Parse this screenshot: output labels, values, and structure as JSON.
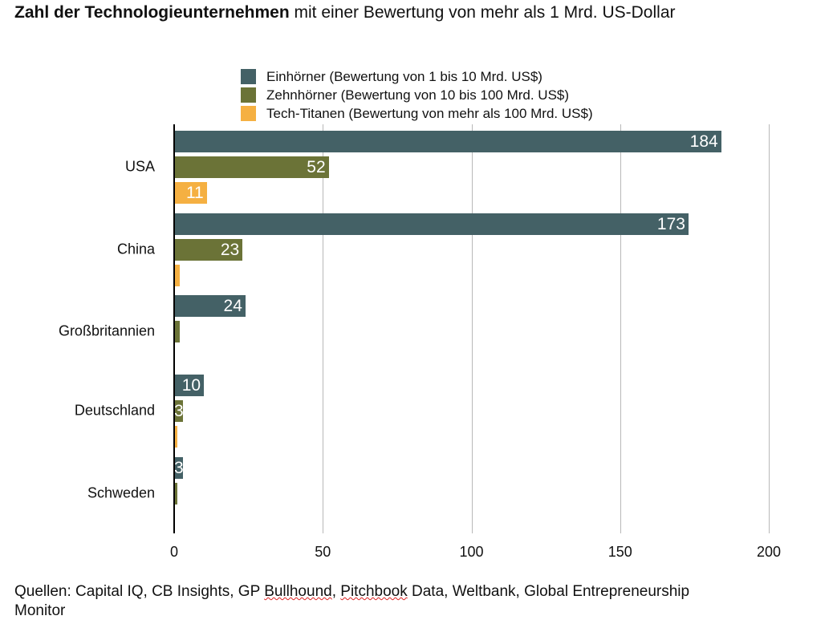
{
  "chart_data": {
    "type": "bar",
    "orientation": "horizontal",
    "title_bold": "Zahl der Technologieunternehmen",
    "title_rest": " mit einer Bewertung von mehr als 1 Mrd. US-Dollar",
    "categories": [
      "USA",
      "China",
      "Großbritannien",
      "Deutschland",
      "Schweden"
    ],
    "series": [
      {
        "name": "Einhörner (Bewertung von 1 bis 10 Mrd. US$)",
        "color": "#446166",
        "values": [
          184,
          173,
          24,
          10,
          3
        ]
      },
      {
        "name": "Zehnhörner (Bewertung von 10 bis 100 Mrd. US$)",
        "color": "#6b7337",
        "values": [
          52,
          23,
          2,
          3,
          1
        ]
      },
      {
        "name": "Tech-Titanen (Bewertung von mehr als 100 Mrd. US$)",
        "color": "#f5b042",
        "values": [
          11,
          2,
          0,
          1,
          0
        ]
      }
    ],
    "xlim": [
      0,
      200
    ],
    "xticks": [
      "0",
      "50",
      "100",
      "150",
      "200"
    ],
    "grid": true,
    "legend": "top"
  },
  "source": {
    "prefix": "Quellen: Capital IQ, CB Insights, GP ",
    "w1": "Bullhound",
    "mid": ", ",
    "w2": "Pitchbook",
    "suffix": " Data, Weltbank, Global Entrepreneurship Monitor"
  }
}
